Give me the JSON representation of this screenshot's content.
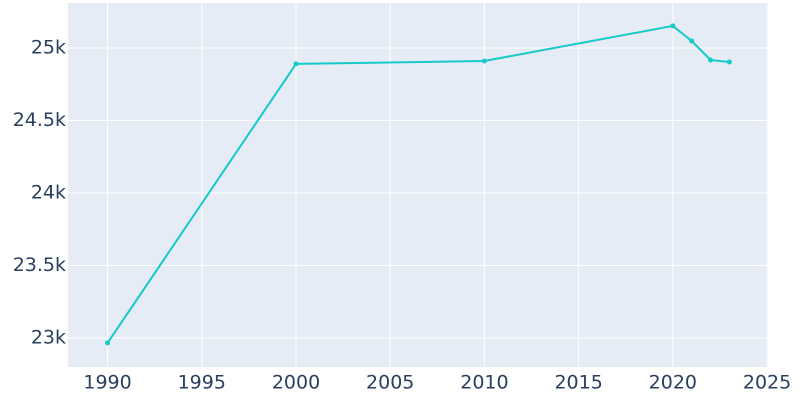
{
  "chart_data": {
    "type": "line",
    "x": [
      1990,
      2000,
      2010,
      2020,
      2021,
      2022,
      2023
    ],
    "series": [
      {
        "color": "#17c9c9",
        "values": [
          22966,
          24890,
          24910,
          25152,
          25048,
          24917,
          24903
        ]
      }
    ],
    "xlim": [
      1987.9,
      2025.05
    ],
    "ylim": [
      22800,
      25310
    ],
    "xticks": [
      1990,
      1995,
      2000,
      2005,
      2010,
      2015,
      2020,
      2025
    ],
    "yticks": [
      {
        "value": 23000,
        "label": "23k"
      },
      {
        "value": 23500,
        "label": "23.5k"
      },
      {
        "value": 24000,
        "label": "24k"
      },
      {
        "value": 24500,
        "label": "24.5k"
      },
      {
        "value": 25000,
        "label": "25k"
      }
    ],
    "grid": true,
    "background": "#e5ecf6"
  }
}
